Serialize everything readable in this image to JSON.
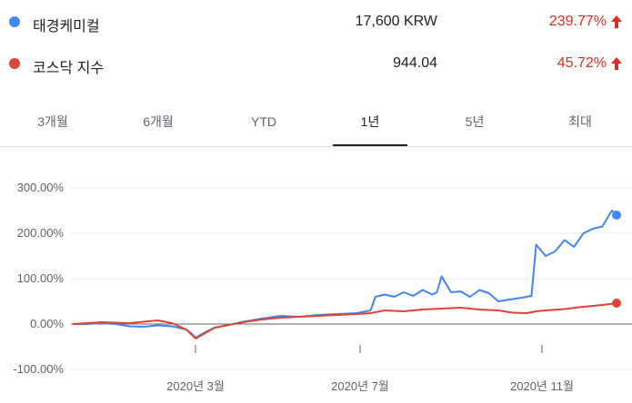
{
  "legend": [
    {
      "name": "태경케미컬",
      "price": "17,600 KRW",
      "change": "239.77%",
      "color": "#4285f4",
      "trend_icon": "arrow-up-icon"
    },
    {
      "name": "코스닥 지수",
      "price": "944.04",
      "change": "45.72%",
      "color": "#db4437",
      "trend_icon": "arrow-up-icon"
    }
  ],
  "tabs": [
    {
      "label": "3개월",
      "active": false
    },
    {
      "label": "6개월",
      "active": false
    },
    {
      "label": "YTD",
      "active": false
    },
    {
      "label": "1년",
      "active": true
    },
    {
      "label": "5년",
      "active": false
    },
    {
      "label": "최대",
      "active": false
    }
  ],
  "chart_data": {
    "type": "line",
    "title": "",
    "xlabel": "",
    "ylabel": "",
    "ylim": [
      -100,
      300
    ],
    "y_ticks": [
      "300.00%",
      "200.00%",
      "100.00%",
      "0.00%",
      "-100.00%"
    ],
    "y_tick_values": [
      300,
      200,
      100,
      0,
      -100
    ],
    "x_ticks": [
      "2020년 3월",
      "2020년 7월",
      "2020년 11월"
    ],
    "x_tick_positions": [
      0.247,
      0.607,
      0.967
    ],
    "grid": true,
    "series": [
      {
        "name": "태경케미컬",
        "color": "#4285f4",
        "x": [
          0.0,
          0.03,
          0.06,
          0.09,
          0.12,
          0.15,
          0.18,
          0.21,
          0.24,
          0.25,
          0.26,
          0.28,
          0.3,
          0.33,
          0.36,
          0.4,
          0.44,
          0.48,
          0.52,
          0.56,
          0.6,
          0.63,
          0.64,
          0.66,
          0.68,
          0.7,
          0.72,
          0.74,
          0.76,
          0.77,
          0.78,
          0.8,
          0.82,
          0.84,
          0.86,
          0.88,
          0.9,
          0.93,
          0.95,
          0.96,
          0.97,
          0.98,
          1.0,
          1.02,
          1.04,
          1.06,
          1.08,
          1.1,
          1.12,
          1.14,
          1.15
        ],
        "y": [
          0,
          0,
          2,
          0,
          -5,
          -6,
          -3,
          -5,
          -12,
          -20,
          -30,
          -18,
          -8,
          -2,
          5,
          12,
          18,
          16,
          20,
          22,
          24,
          30,
          60,
          65,
          60,
          70,
          62,
          75,
          65,
          70,
          105,
          70,
          72,
          60,
          75,
          68,
          50,
          55,
          58,
          60,
          62,
          175,
          150,
          160,
          185,
          170,
          200,
          210,
          215,
          250,
          240
        ]
      },
      {
        "name": "코스닥 지수",
        "color": "#db4437",
        "x": [
          0.0,
          0.03,
          0.06,
          0.09,
          0.12,
          0.15,
          0.18,
          0.21,
          0.24,
          0.25,
          0.26,
          0.28,
          0.3,
          0.33,
          0.36,
          0.4,
          0.44,
          0.48,
          0.52,
          0.56,
          0.6,
          0.63,
          0.66,
          0.7,
          0.74,
          0.78,
          0.82,
          0.86,
          0.9,
          0.93,
          0.96,
          0.98,
          1.0,
          1.04,
          1.08,
          1.12,
          1.15
        ],
        "y": [
          0,
          2,
          4,
          3,
          2,
          5,
          8,
          2,
          -12,
          -22,
          -32,
          -20,
          -8,
          -2,
          4,
          10,
          14,
          16,
          18,
          20,
          22,
          24,
          30,
          28,
          32,
          34,
          36,
          32,
          30,
          25,
          24,
          28,
          30,
          33,
          38,
          42,
          46
        ]
      }
    ]
  }
}
